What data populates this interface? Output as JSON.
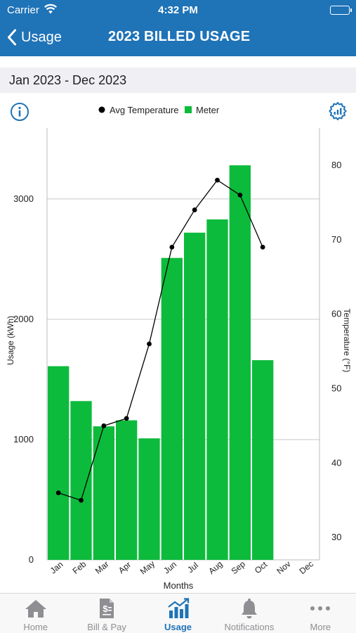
{
  "status_bar": {
    "carrier": "Carrier",
    "time": "4:32 PM"
  },
  "nav": {
    "back_label": "Usage",
    "title": "2023 BILLED USAGE"
  },
  "date_range": "Jan 2023 - Dec 2023",
  "colors": {
    "brand": "#1f73b7",
    "meter_bar": "#0dbb3c",
    "temperature_line": "#000000",
    "tab_inactive": "#8e8e93"
  },
  "icons": {
    "info": "info-icon",
    "settings": "settings-gear-icon",
    "back": "chevron-left-icon"
  },
  "chart_data": {
    "type": "bar",
    "categories": [
      "Jan",
      "Feb",
      "Mar",
      "Apr",
      "May",
      "Jun",
      "Jul",
      "Aug",
      "Sep",
      "Oct",
      "Nov",
      "Dec"
    ],
    "series": [
      {
        "name": "Meter",
        "type": "bar",
        "axis": "left",
        "values": [
          1610,
          1320,
          1110,
          1160,
          1010,
          2510,
          2720,
          2830,
          3280,
          1660,
          null,
          null
        ]
      },
      {
        "name": "Avg Temperature",
        "type": "line",
        "axis": "right",
        "values": [
          36,
          35,
          45,
          46,
          56,
          69,
          74,
          78,
          76,
          69,
          null,
          null
        ]
      }
    ],
    "xlabel": "Months",
    "ylabel": "Usage (kWh)",
    "y2label": "Temperature (°F)",
    "ylim": [
      0,
      3590
    ],
    "y2lim": [
      27,
      85
    ],
    "yticks": [
      "0",
      "1000",
      "2000",
      "3000"
    ],
    "y2ticks": [
      "30",
      "40",
      "50",
      "60",
      "70",
      "80"
    ],
    "legend": [
      "Avg Temperature",
      "Meter"
    ],
    "legend_position": "top-center",
    "grid": true
  },
  "tabs": [
    {
      "label": "Home",
      "icon": "home-icon",
      "active": false
    },
    {
      "label": "Bill & Pay",
      "icon": "bill-icon",
      "active": false
    },
    {
      "label": "Usage",
      "icon": "usage-chart-icon",
      "active": true
    },
    {
      "label": "Notifications",
      "icon": "bell-icon",
      "active": false
    },
    {
      "label": "More",
      "icon": "more-icon",
      "active": false
    }
  ]
}
